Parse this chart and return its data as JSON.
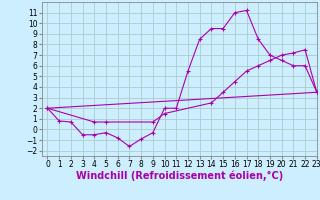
{
  "background_color": "#cceeff",
  "grid_color": "#aacccc",
  "line_color": "#aa00aa",
  "marker": "+",
  "line1_x": [
    0,
    1,
    2,
    3,
    4,
    5,
    6,
    7,
    8,
    9,
    10,
    11,
    12,
    13,
    14,
    15,
    16,
    17,
    18,
    19,
    20,
    21,
    22,
    23
  ],
  "line1_y": [
    2.0,
    0.8,
    0.7,
    -0.5,
    -0.5,
    -0.3,
    -0.8,
    -1.6,
    -0.9,
    -0.3,
    2.0,
    2.0,
    5.5,
    8.5,
    9.5,
    9.5,
    11.0,
    11.2,
    8.5,
    7.0,
    6.5,
    6.0,
    6.0,
    3.5
  ],
  "line2_x": [
    0,
    23
  ],
  "line2_y": [
    2.0,
    3.5
  ],
  "line3_x": [
    0,
    4,
    5,
    9,
    10,
    14,
    15,
    16,
    17,
    18,
    19,
    20,
    21,
    22,
    23
  ],
  "line3_y": [
    2.0,
    0.7,
    0.7,
    0.7,
    1.5,
    2.5,
    3.5,
    4.5,
    5.5,
    6.0,
    6.5,
    7.0,
    7.2,
    7.5,
    3.5
  ],
  "ylim": [
    -2.5,
    12
  ],
  "xlim": [
    -0.5,
    23
  ],
  "yticks": [
    -2,
    -1,
    0,
    1,
    2,
    3,
    4,
    5,
    6,
    7,
    8,
    9,
    10,
    11
  ],
  "xticks": [
    0,
    1,
    2,
    3,
    4,
    5,
    6,
    7,
    8,
    9,
    10,
    11,
    12,
    13,
    14,
    15,
    16,
    17,
    18,
    19,
    20,
    21,
    22,
    23
  ],
  "xlabel": "Windchill (Refroidissement éolien,°C)",
  "xlabel_color": "#aa00aa",
  "xlabel_fontsize": 7,
  "tick_fontsize": 5.5
}
